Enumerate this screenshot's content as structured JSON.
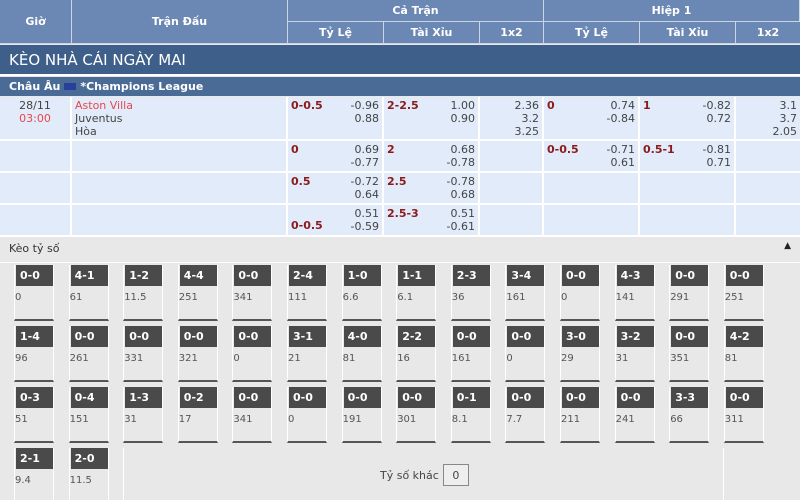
{
  "header": {
    "gio": "Giờ",
    "tran_dau": "Trận Đấu",
    "ca_tran": "Cả Trận",
    "hiep1": "Hiệp 1",
    "ty_le": "Tỷ Lệ",
    "tai_xiu": "Tài Xỉu",
    "x12": "1x2"
  },
  "title": "KÈO NHÀ CÁI NGÀY MAI",
  "league": {
    "region": "Châu Âu",
    "name": "*Champions League"
  },
  "match": {
    "date": "28/11",
    "time": "03:00",
    "home": "Aston Villa",
    "away": "Juventus",
    "draw": "Hòa"
  },
  "rows": [
    {
      "ft_hc": "0-0.5",
      "ft_hc_o": [
        "-0.96",
        "0.88"
      ],
      "ft_ou": "2-2.5",
      "ft_ou_o": [
        "1.00",
        "0.90"
      ],
      "ft_1x2": [
        "2.36",
        "3.2",
        "3.25"
      ],
      "h1_hc": "0",
      "h1_hc_o": [
        "0.74",
        "-0.84"
      ],
      "h1_ou": "1",
      "h1_ou_o": [
        "-0.82",
        "0.72"
      ],
      "h1_1x2": [
        "3.1",
        "3.7",
        "2.05"
      ]
    },
    {
      "ft_hc": "0",
      "ft_hc_o": [
        "0.69",
        "-0.77"
      ],
      "ft_ou": "2",
      "ft_ou_o": [
        "0.68",
        "-0.78"
      ],
      "h1_hc": "0-0.5",
      "h1_hc_o": [
        "-0.71",
        "0.61"
      ],
      "h1_ou": "0.5-1",
      "h1_ou_o": [
        "-0.81",
        "0.71"
      ]
    },
    {
      "ft_hc": "0.5",
      "ft_hc_o": [
        "-0.72",
        "0.64"
      ],
      "ft_ou": "2.5",
      "ft_ou_o": [
        "-0.78",
        "0.68"
      ]
    },
    {
      "ft_hc": "0-0.5",
      "ft_hc_o": [
        "0.51",
        "-0.59"
      ],
      "ft_ou": "2.5-3",
      "ft_ou_o": [
        "0.51",
        "-0.61"
      ]
    }
  ],
  "keo_ty_so": {
    "title": "Kèo tỷ số",
    "collapse_icon": "triangle-up-icon",
    "tiles": [
      [
        "0-0",
        "0"
      ],
      [
        "4-1",
        "61"
      ],
      [
        "1-2",
        "11.5"
      ],
      [
        "4-4",
        "251"
      ],
      [
        "0-0",
        "341"
      ],
      [
        "2-4",
        "111"
      ],
      [
        "1-0",
        "6.6"
      ],
      [
        "1-1",
        "6.1"
      ],
      [
        "2-3",
        "36"
      ],
      [
        "3-4",
        "161"
      ],
      [
        "0-0",
        "0"
      ],
      [
        "4-3",
        "141"
      ],
      [
        "0-0",
        "291"
      ],
      [
        "0-0",
        "251"
      ],
      [
        "1-4",
        "96"
      ],
      [
        "0-0",
        "261"
      ],
      [
        "0-0",
        "331"
      ],
      [
        "0-0",
        "321"
      ],
      [
        "0-0",
        "0"
      ],
      [
        "3-1",
        "21"
      ],
      [
        "4-0",
        "81"
      ],
      [
        "2-2",
        "16"
      ],
      [
        "0-0",
        "161"
      ],
      [
        "0-0",
        "0"
      ],
      [
        "3-0",
        "29"
      ],
      [
        "3-2",
        "31"
      ],
      [
        "0-0",
        "351"
      ],
      [
        "4-2",
        "81"
      ],
      [
        "0-3",
        "51"
      ],
      [
        "0-4",
        "151"
      ],
      [
        "1-3",
        "31"
      ],
      [
        "0-2",
        "17"
      ],
      [
        "0-0",
        "341"
      ],
      [
        "0-0",
        "0"
      ],
      [
        "0-0",
        "191"
      ],
      [
        "0-0",
        "301"
      ],
      [
        "0-1",
        "8.1"
      ],
      [
        "0-0",
        "7.7"
      ],
      [
        "0-0",
        "211"
      ],
      [
        "0-0",
        "241"
      ],
      [
        "3-3",
        "66"
      ],
      [
        "0-0",
        "311"
      ],
      [
        "2-1",
        "9.4"
      ],
      [
        "2-0",
        "11.5"
      ]
    ],
    "other_label": "Tỷ số khác",
    "other_value": "0"
  }
}
